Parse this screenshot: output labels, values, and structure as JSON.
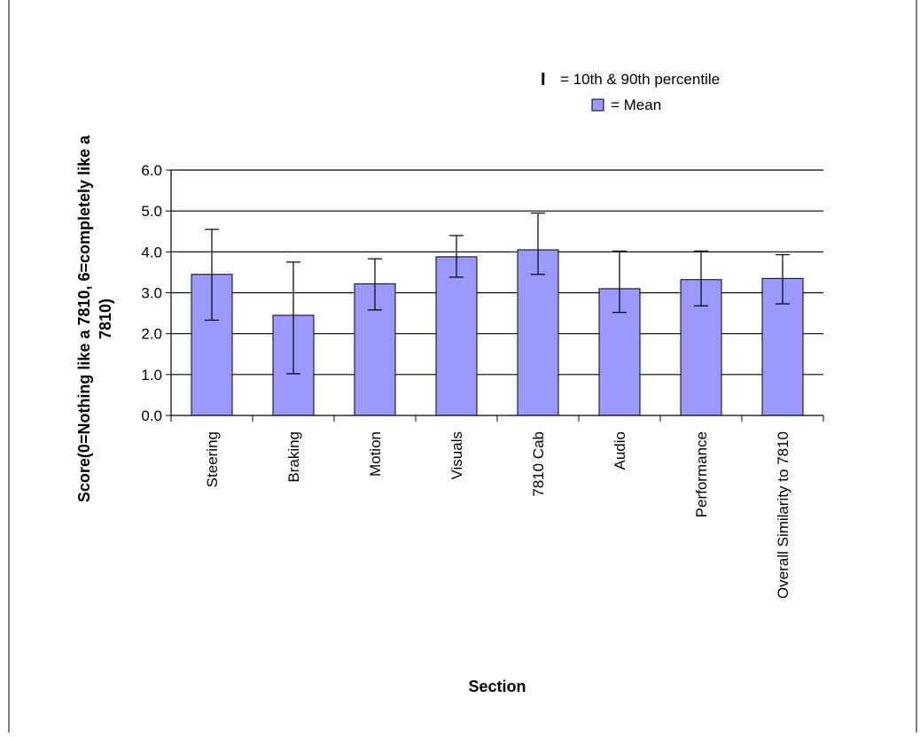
{
  "chart_data": {
    "type": "bar",
    "title": "",
    "xlabel": "Section",
    "ylabel": "Score(0=Nothing like a 7810, 6=completely like a 7810)",
    "ylim": [
      0,
      6
    ],
    "yticks": [
      "0.0",
      "1.0",
      "2.0",
      "3.0",
      "4.0",
      "5.0",
      "6.0"
    ],
    "grid": true,
    "legend_placement": "top-right",
    "legend": {
      "errorbar_symbol": "I",
      "errorbar_label": "= 10th & 90th percentile",
      "bar_label": "= Mean"
    },
    "categories": [
      "Steering",
      "Braking",
      "Motion",
      "Visuals",
      "7810 Cab",
      "Audio",
      "Performance",
      "Overall Similarity to 7810"
    ],
    "series": [
      {
        "values": [
          3.45,
          2.45,
          3.22,
          3.88,
          4.05,
          3.1,
          3.32,
          3.35
        ],
        "p10": [
          2.33,
          1.02,
          2.58,
          3.38,
          3.45,
          2.52,
          2.68,
          2.73
        ],
        "p90": [
          4.55,
          3.75,
          3.83,
          4.4,
          4.95,
          4.02,
          4.02,
          3.93
        ]
      }
    ],
    "colors": {
      "bar_fill": "#9999ff",
      "bar_stroke": "#000000",
      "grid": "#000000"
    }
  }
}
